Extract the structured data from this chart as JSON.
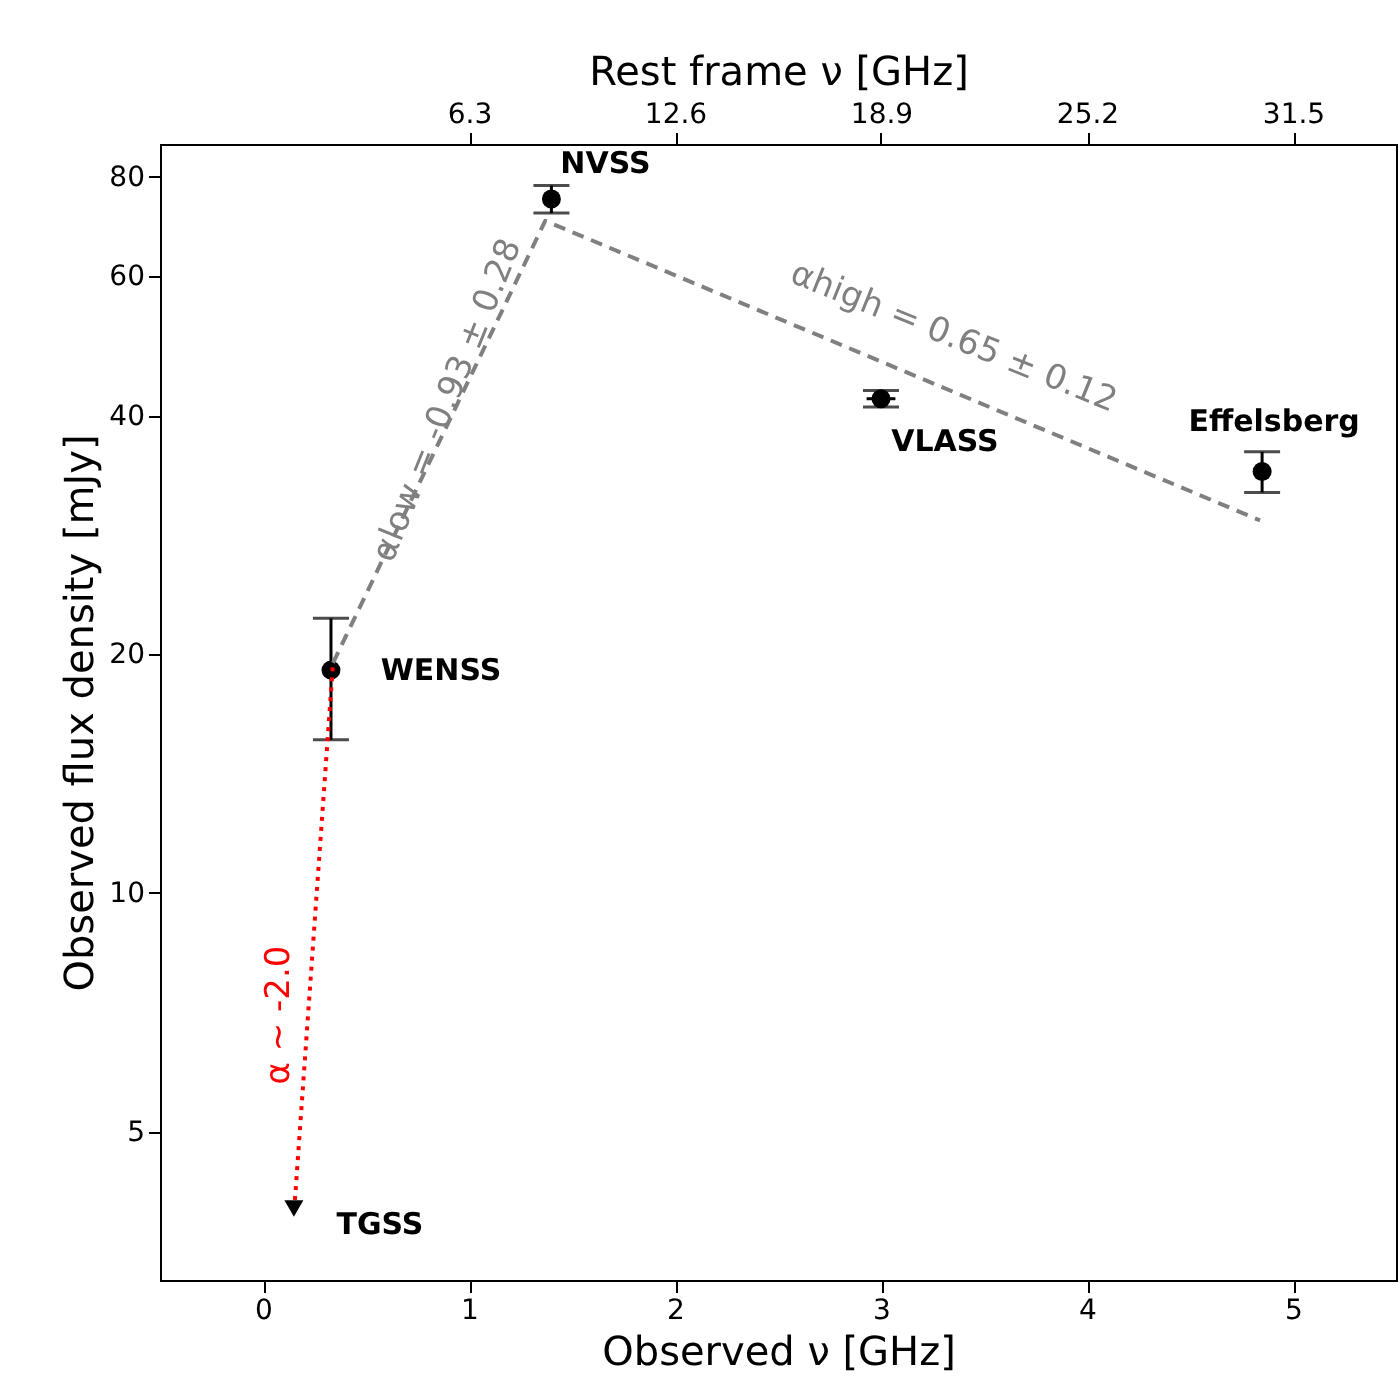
{
  "chart_data": {
    "type": "scatter",
    "xlabel": "Observed ν [GHz]",
    "ylabel": "Observed flux density [mJy]",
    "x2label": "Rest frame ν [GHz]",
    "xlim": [
      -0.5,
      5.5
    ],
    "xticks": [
      0,
      1,
      2,
      3,
      4,
      5
    ],
    "x2lim": [
      -3.15,
      34.65
    ],
    "x2ticks": [
      {
        "value": 6.3,
        "label": "6.3"
      },
      {
        "value": 12.6,
        "label": "12.6"
      },
      {
        "value": 18.9,
        "label": "18.9"
      },
      {
        "value": 25.2,
        "label": "25.2"
      },
      {
        "value": 31.5,
        "label": "31.5"
      }
    ],
    "ylim": [
      3.25,
      88
    ],
    "yticks": [
      5,
      10,
      20,
      40,
      60,
      80
    ],
    "log": "y",
    "grid": false,
    "series": [
      {
        "color": "#000000",
        "marker": "circle",
        "x": [
          0.33,
          1.4,
          3.0,
          4.85
        ],
        "values": [
          19.1,
          75,
          42,
          34
        ],
        "errors": [
          [
            15.6,
            22.2
          ],
          3,
          1,
          2
        ],
        "xerrors": [
          null,
          null,
          0.07,
          null
        ]
      },
      {
        "color": "#000000",
        "marker": "triangle",
        "x": [
          0.15
        ],
        "values": [
          4.0
        ]
      },
      {
        "type": "line",
        "color": "#808080",
        "line_style": "dashed",
        "marker": "none",
        "x": [
          0.34,
          1.37,
          4.84
        ],
        "values": [
          19.5,
          70.4,
          29.5
        ]
      },
      {
        "type": "line",
        "color": "#ff0000",
        "line_style": "dotted",
        "marker": "none",
        "x": [
          0.155,
          0.34
        ],
        "values": [
          4.1,
          19.5
        ]
      }
    ],
    "annotations": [
      {
        "text": "NVSS",
        "x": 1.4,
        "y": 75
      },
      {
        "text": "VLASS",
        "x": 3.0,
        "y": 42
      },
      {
        "text": "Effelsberg",
        "x": 4.85,
        "y": 34
      },
      {
        "text": "WENSS",
        "x": 0.33,
        "y": 19.1
      },
      {
        "text": "TGSS",
        "x": 0.15,
        "y": 4.0
      },
      {
        "text": "αlow = -0.93 ± 0.28",
        "x": 0.855,
        "y": 37.0
      },
      {
        "text": "αhigh = 0.65 ± 0.12",
        "x": 3.1,
        "y": 45.6
      },
      {
        "text": "α ~ -2.0",
        "x": 0.25,
        "y": 8.9
      }
    ]
  }
}
